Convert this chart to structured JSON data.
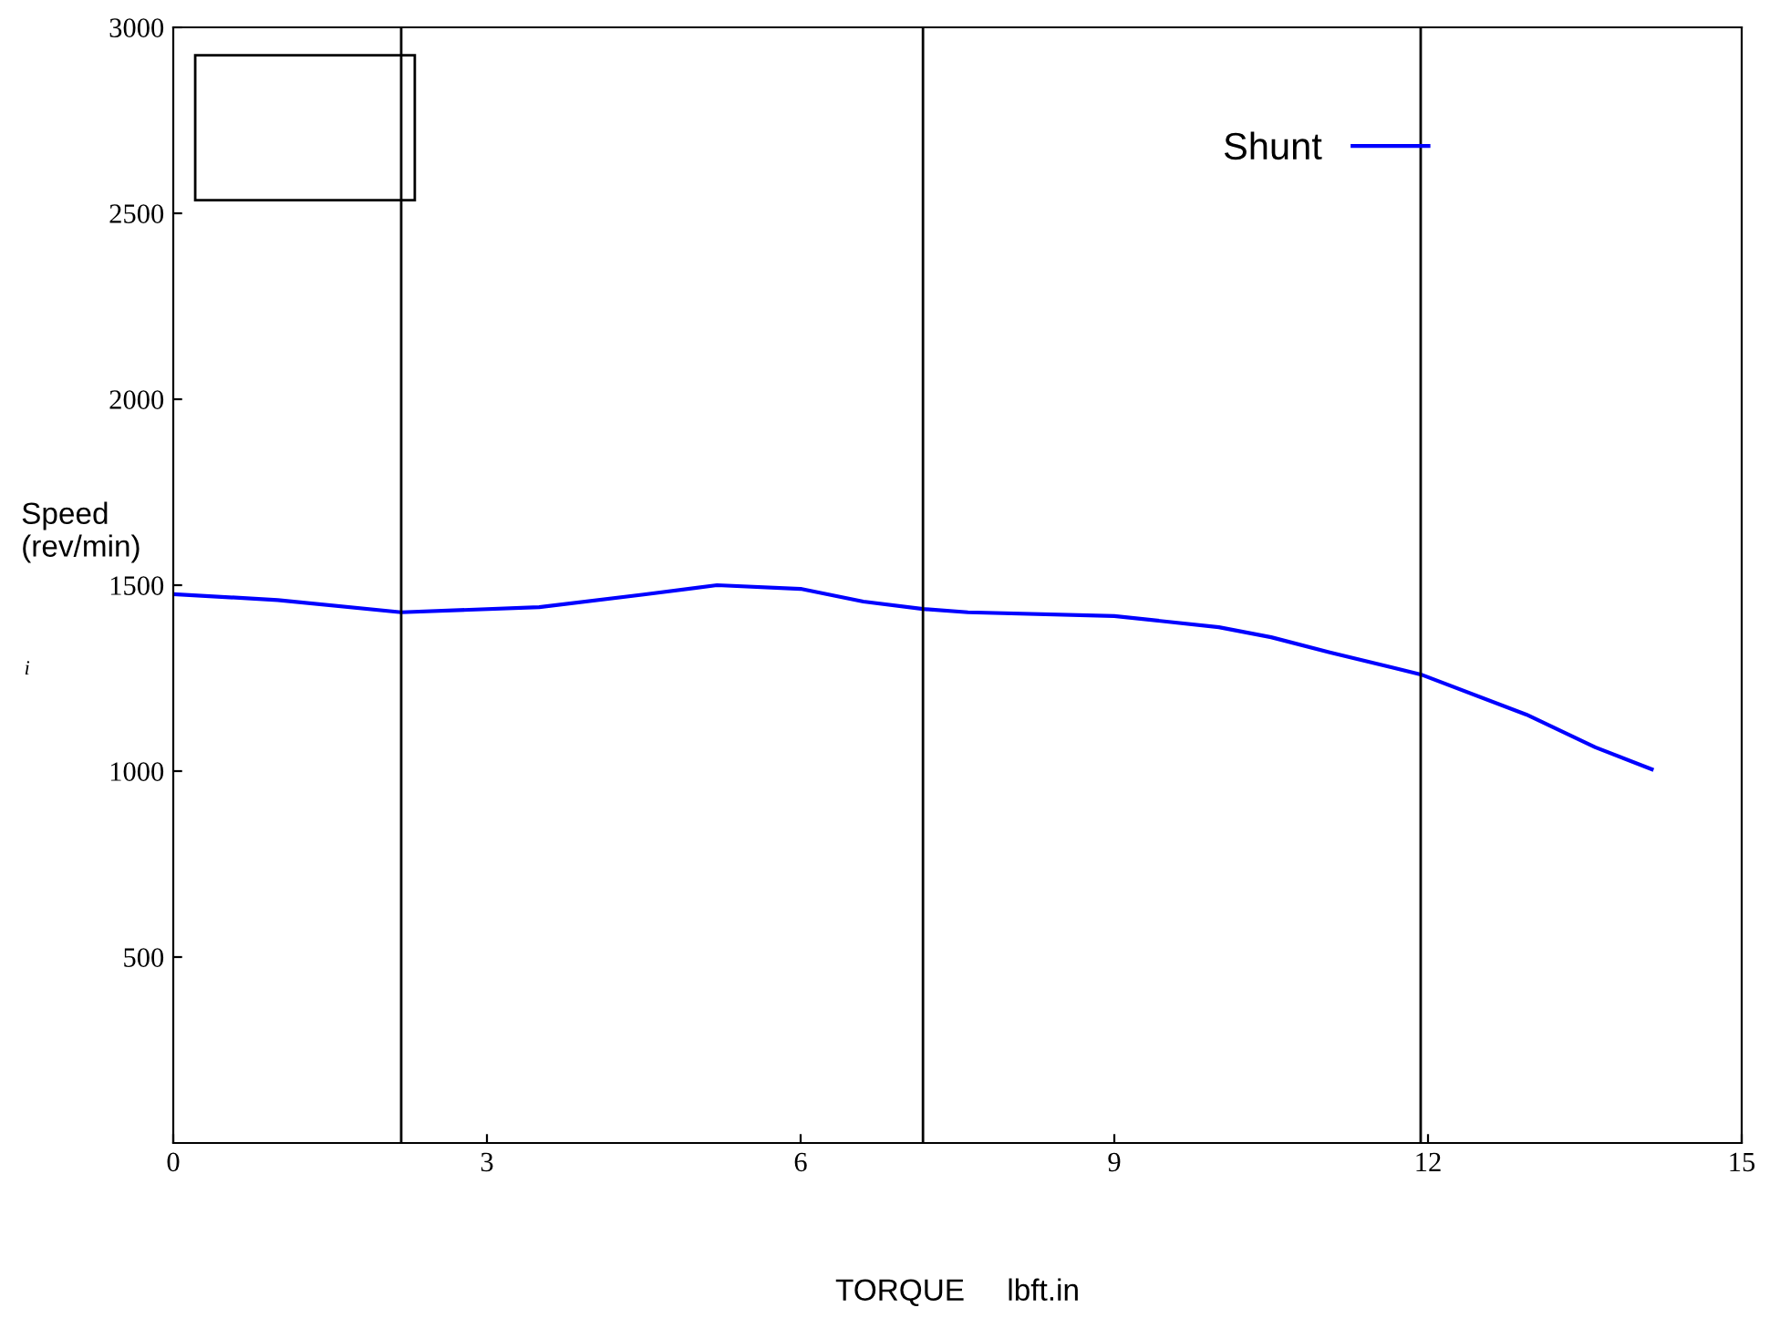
{
  "chart_data": {
    "type": "line",
    "xlabel": "TORQUE     lbft.in",
    "ylabel": "Speed\n(rev/min)",
    "annotations": [
      "i"
    ],
    "x": [
      0,
      1.0,
      2.18,
      3.5,
      4.5,
      5.2,
      6.0,
      6.6,
      7.17,
      7.6,
      9.0,
      10.0,
      10.5,
      11.06,
      11.93,
      12.94,
      13.6,
      14.14
    ],
    "series": [
      {
        "name": "Shunt",
        "color": "#0000ff",
        "values": [
          1476,
          1460,
          1427,
          1441,
          1475,
          1500,
          1490,
          1456,
          1436,
          1427,
          1417,
          1387,
          1360,
          1319,
          1260,
          1152,
          1064,
          1005
        ]
      }
    ],
    "ref_lines": [
      {
        "axis": "x",
        "value": 2.18,
        "color": "#000000"
      },
      {
        "axis": "x",
        "value": 7.17,
        "color": "#000000"
      },
      {
        "axis": "x",
        "value": 11.93,
        "color": "#000000"
      }
    ],
    "xlim": [
      0,
      15
    ],
    "ylim": [
      0,
      3000
    ],
    "xticks": [
      0,
      3,
      6,
      9,
      12,
      15
    ],
    "yticks": [
      500,
      1000,
      1500,
      2000,
      2500,
      3000
    ],
    "grid": false,
    "legend": "top right",
    "line_style": "solid",
    "marker": "none"
  }
}
